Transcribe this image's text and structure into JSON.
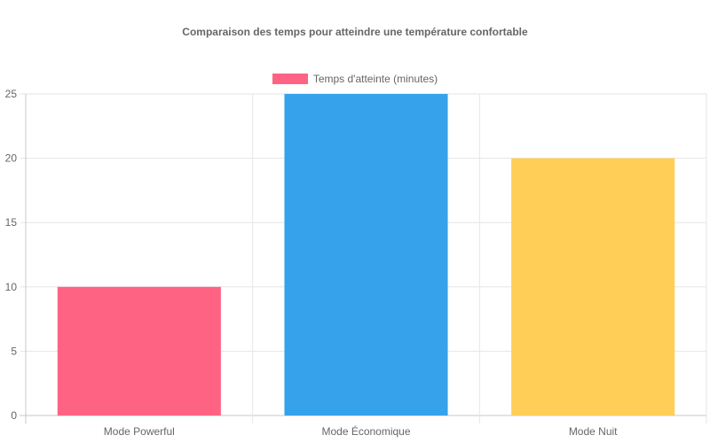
{
  "chart_data": {
    "type": "bar",
    "title": "Comparaison des temps pour atteindre une température confortable",
    "categories": [
      "Mode Powerful",
      "Mode Économique",
      "Mode Nuit"
    ],
    "series": [
      {
        "name": "Temps d'atteinte (minutes)",
        "values": [
          10,
          25,
          20
        ],
        "colors": [
          "#ff6384",
          "#36a2eb",
          "#ffce56"
        ]
      }
    ],
    "xlabel": "",
    "ylabel": "",
    "ylim": [
      0,
      25
    ],
    "yticks": [
      0,
      5,
      10,
      15,
      20,
      25
    ],
    "grid": true,
    "legend_position": "top"
  }
}
